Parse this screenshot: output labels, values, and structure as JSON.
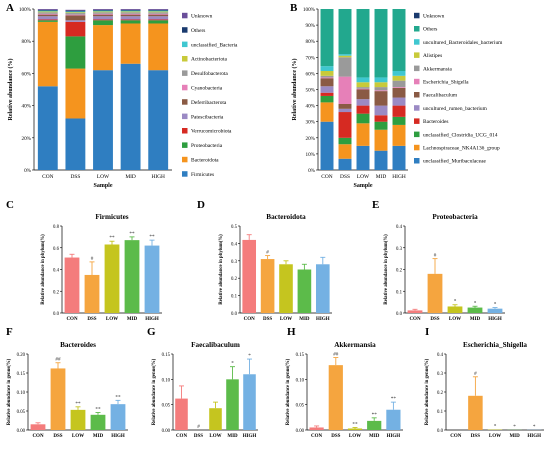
{
  "chart_data": [
    {
      "panel": "A",
      "type": "bar",
      "stacked": true,
      "xlabel": "Sample",
      "ylabel": "Relative abundance (%)",
      "ylim": [
        0,
        100
      ],
      "yticks": [
        "0%",
        "20%",
        "40%",
        "60%",
        "80%",
        "100%"
      ],
      "categories": [
        "CON",
        "DSS",
        "LOW",
        "MID",
        "HIGH"
      ],
      "series": [
        {
          "name": "Firmicutes",
          "color": "#2f7ec1",
          "values": [
            52,
            32,
            62,
            66,
            62
          ]
        },
        {
          "name": "Bacteroidota",
          "color": "#f5941e",
          "values": [
            40,
            31,
            28,
            25,
            29
          ]
        },
        {
          "name": "Proteobacteria",
          "color": "#2e9e3f",
          "values": [
            1,
            20,
            3,
            2,
            2
          ]
        },
        {
          "name": "Verrucomicrobiota",
          "color": "#d62a22",
          "values": [
            0.5,
            9,
            0.5,
            0.5,
            0.5
          ]
        },
        {
          "name": "Patescibacteria",
          "color": "#9b8ac4",
          "values": [
            2,
            1,
            2,
            2,
            2
          ]
        },
        {
          "name": "Deferribacterota",
          "color": "#8a5a44",
          "values": [
            1,
            3,
            1,
            1,
            1
          ]
        },
        {
          "name": "Cyanobacteria",
          "color": "#e680b8",
          "values": [
            0.5,
            0.5,
            0.5,
            0.5,
            0.5
          ]
        },
        {
          "name": "Desulfobacterota",
          "color": "#9a9a9a",
          "values": [
            1,
            1,
            1,
            1,
            1
          ]
        },
        {
          "name": "Actinobacteriota",
          "color": "#c8ca3a",
          "values": [
            0.5,
            0.5,
            0.5,
            0.5,
            0.5
          ]
        },
        {
          "name": "unclassified_Bacteria",
          "color": "#3fc7d0",
          "values": [
            0.5,
            0.5,
            0.5,
            0.5,
            0.5
          ]
        },
        {
          "name": "Others",
          "color": "#1a3a6e",
          "values": [
            0.5,
            0.5,
            0.5,
            0.5,
            0.5
          ]
        },
        {
          "name": "Unknown",
          "color": "#6a4e9a",
          "values": [
            0.5,
            0.5,
            0.5,
            0.5,
            0.5
          ]
        }
      ],
      "legend_order": [
        "Unknown",
        "Others",
        "unclassified_Bacteria",
        "Actinobacteriota",
        "Desulfobacterota",
        "Cyanobacteria",
        "Deferribacterota",
        "Patescibacteria",
        "Verrucomicrobiota",
        "Proteobacteria",
        "Bacteroidota",
        "Firmicutes"
      ]
    },
    {
      "panel": "B",
      "type": "bar",
      "stacked": true,
      "xlabel": "Sample",
      "ylabel": "Relative abundance (%)",
      "ylim": [
        0,
        100
      ],
      "yticks": [
        "0%",
        "10%",
        "20%",
        "30%",
        "40%",
        "50%",
        "60%",
        "70%",
        "80%",
        "90%",
        "100%"
      ],
      "categories": [
        "CON",
        "DSS",
        "LOW",
        "MID",
        "HIGH"
      ],
      "series": [
        {
          "name": "unclassified_Muribaculaceae",
          "color": "#2f7ec1",
          "values": [
            30,
            7,
            15,
            12,
            15
          ]
        },
        {
          "name": "Lachnospiraceae_NK4A136_group",
          "color": "#f5941e",
          "values": [
            12,
            9,
            14,
            13,
            13
          ]
        },
        {
          "name": "unclassified_Clostridia_UCG_014",
          "color": "#2e9e3f",
          "values": [
            4,
            4,
            6,
            5,
            5
          ]
        },
        {
          "name": "Bacteroides",
          "color": "#d62a22",
          "values": [
            2,
            16,
            5,
            4,
            7
          ]
        },
        {
          "name": "uncultured_rumen_bacterium",
          "color": "#9b8ac4",
          "values": [
            4,
            2,
            4,
            6,
            5
          ]
        },
        {
          "name": "Faecalibaculum",
          "color": "#8a5a44",
          "values": [
            5,
            3,
            6,
            9,
            6
          ]
        },
        {
          "name": "Escherichia_Shigella",
          "color": "#e680b8",
          "values": [
            0.5,
            17,
            0.5,
            0.5,
            0.5
          ]
        },
        {
          "name": "Akkermansia",
          "color": "#9a9a9a",
          "values": [
            1,
            12,
            1,
            2,
            4
          ]
        },
        {
          "name": "Alistipes",
          "color": "#c8ca3a",
          "values": [
            3,
            1,
            3,
            3,
            3
          ]
        },
        {
          "name": "uncultured_Bacteroidales_bacterium",
          "color": "#3fc7d0",
          "values": [
            3,
            1,
            3,
            3,
            3
          ]
        },
        {
          "name": "Others",
          "color": "#22a88e",
          "values": [
            35.5,
            28,
            42.5,
            42.5,
            38.5
          ]
        },
        {
          "name": "Unknown",
          "color": "#1a3a6e",
          "values": [
            0,
            0,
            0,
            0,
            0
          ]
        }
      ],
      "legend_order": [
        "Unknown",
        "Others",
        "uncultured_Bacteroidales_bacterium",
        "Alistipes",
        "Akkermansia",
        "Escherichia_Shigella",
        "Faecalibaculum",
        "uncultured_rumen_bacterium",
        "Bacteroides",
        "unclassified_Clostridia_UCG_014",
        "Lachnospiraceae_NK4A136_group",
        "unclassified_Muribaculaceae"
      ]
    },
    {
      "panel": "C",
      "type": "bar",
      "title": "Firmicutes",
      "ylabel": "Relative abundance in phylum(%)",
      "ylim": [
        0,
        0.8
      ],
      "yticks": [
        "0.0",
        "0.2",
        "0.4",
        "0.6",
        "0.8"
      ],
      "categories": [
        "CON",
        "DSS",
        "LOW",
        "MID",
        "HIGH"
      ],
      "values": [
        0.51,
        0.35,
        0.63,
        0.67,
        0.62
      ],
      "errors": [
        0.03,
        0.12,
        0.03,
        0.03,
        0.05
      ],
      "marks": [
        "",
        "#",
        "**",
        "**",
        "**"
      ]
    },
    {
      "panel": "D",
      "type": "bar",
      "title": "Bacteroidota",
      "ylabel": "Relative abundance in phylum(%)",
      "ylim": [
        0,
        0.5
      ],
      "yticks": [
        "0.0",
        "0.1",
        "0.2",
        "0.3",
        "0.4",
        "0.5"
      ],
      "categories": [
        "CON",
        "DSS",
        "LOW",
        "MID",
        "HIGH"
      ],
      "values": [
        0.42,
        0.31,
        0.28,
        0.25,
        0.28
      ],
      "errors": [
        0.03,
        0.02,
        0.02,
        0.03,
        0.04
      ],
      "marks": [
        "",
        "#",
        "",
        "",
        ""
      ]
    },
    {
      "panel": "E",
      "type": "bar",
      "title": "Proteobacteria",
      "ylabel": "Relative abundance in phylum(%)",
      "ylim": [
        0,
        0.4
      ],
      "yticks": [
        "0.0",
        "0.1",
        "0.2",
        "0.3",
        "0.4"
      ],
      "categories": [
        "CON",
        "DSS",
        "LOW",
        "MID",
        "HIGH"
      ],
      "values": [
        0.012,
        0.18,
        0.03,
        0.025,
        0.02
      ],
      "errors": [
        0.005,
        0.07,
        0.008,
        0.006,
        0.005
      ],
      "marks": [
        "",
        "#",
        "*",
        "*",
        "*"
      ]
    },
    {
      "panel": "F",
      "type": "bar",
      "title": "Bacteroides",
      "ylabel": "Relative abundance in genus(%)",
      "ylim": [
        0,
        0.2
      ],
      "yticks": [
        "0.00",
        "0.05",
        "0.10",
        "0.15",
        "0.20"
      ],
      "categories": [
        "CON",
        "DSS",
        "LOW",
        "MID",
        "HIGH"
      ],
      "values": [
        0.015,
        0.162,
        0.053,
        0.04,
        0.068
      ],
      "errors": [
        0.004,
        0.015,
        0.008,
        0.006,
        0.01
      ],
      "marks": [
        "",
        "##",
        "**",
        "**",
        "**"
      ]
    },
    {
      "panel": "G",
      "type": "bar",
      "title": "Faecalibaculum",
      "ylabel": "Relative abundance in genus(%)",
      "ylim": [
        0,
        0.15
      ],
      "yticks": [
        "0.00",
        "0.05",
        "0.10",
        "0.15"
      ],
      "categories": [
        "CON",
        "DSS",
        "LOW",
        "MID",
        "HIGH"
      ],
      "values": [
        0.062,
        0.0,
        0.043,
        0.1,
        0.11
      ],
      "errors": [
        0.025,
        0.0,
        0.012,
        0.025,
        0.03
      ],
      "marks": [
        "",
        "#",
        "",
        "*",
        "*"
      ]
    },
    {
      "panel": "H",
      "type": "bar",
      "title": "Akkermansia",
      "ylabel": "Relative abundance in genus(%)",
      "ylim": [
        0,
        0.15
      ],
      "yticks": [
        "0.00",
        "0.05",
        "0.10",
        "0.15"
      ],
      "categories": [
        "CON",
        "DSS",
        "LOW",
        "MID",
        "HIGH"
      ],
      "values": [
        0.005,
        0.128,
        0.003,
        0.018,
        0.04
      ],
      "errors": [
        0.003,
        0.015,
        0.002,
        0.006,
        0.015
      ],
      "marks": [
        "",
        "##",
        "**",
        "**",
        "**"
      ]
    },
    {
      "panel": "I",
      "type": "bar",
      "title": "Escherichia_Shigella",
      "ylabel": "Relative abundance in genus(%)",
      "ylim": [
        0,
        0.4
      ],
      "yticks": [
        "0.0",
        "0.1",
        "0.2",
        "0.3",
        "0.4"
      ],
      "categories": [
        "CON",
        "DSS",
        "LOW",
        "MID",
        "HIGH"
      ],
      "values": [
        0.0,
        0.18,
        0.002,
        0.001,
        0.001
      ],
      "errors": [
        0.0,
        0.1,
        0.0,
        0.0,
        0.0
      ],
      "marks": [
        "",
        "#",
        "*",
        "*",
        "*"
      ]
    }
  ],
  "bar_colors": [
    "#f47c7c",
    "#f5a53f",
    "#c5c51f",
    "#5cbb4a",
    "#74b1e3"
  ]
}
